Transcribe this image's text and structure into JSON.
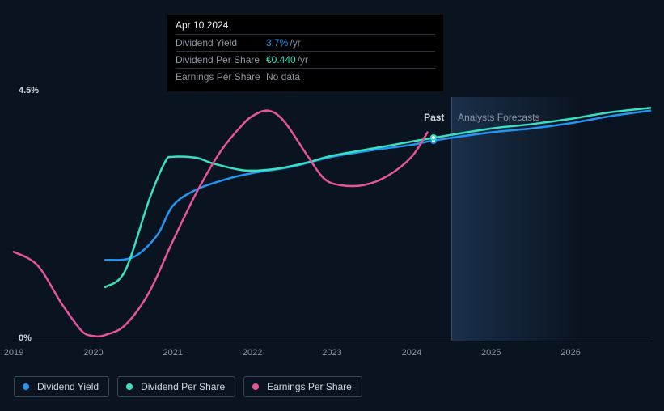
{
  "tooltip": {
    "date": "Apr 10 2024",
    "rows": [
      {
        "label": "Dividend Yield",
        "value": "3.7%",
        "unit": "/yr",
        "color": "#2196f3"
      },
      {
        "label": "Dividend Per Share",
        "value": "€0.440",
        "unit": "/yr",
        "color": "#38e1c0"
      },
      {
        "label": "Earnings Per Share",
        "value": "No data",
        "unit": "",
        "color": "#8a96a3"
      }
    ]
  },
  "chart": {
    "y_max_label": "4.5%",
    "y_min_label": "0%",
    "ylim": [
      0,
      4.5
    ],
    "xlim": [
      2019,
      2027
    ],
    "x_ticks": [
      2019,
      2020,
      2021,
      2022,
      2023,
      2024,
      2025,
      2026
    ],
    "past_label": "Past",
    "forecast_label": "Analysts Forecasts",
    "present_x": 2024.5,
    "marker_x": 2024.28,
    "background": "#0a1420",
    "grid_color": "#2a3947",
    "series": [
      {
        "name": "Dividend Yield",
        "color": "#2196f3",
        "width": 2.5,
        "points": [
          [
            2020.15,
            1.5
          ],
          [
            2020.5,
            1.55
          ],
          [
            2020.8,
            1.95
          ],
          [
            2021.0,
            2.5
          ],
          [
            2021.3,
            2.8
          ],
          [
            2021.7,
            3.0
          ],
          [
            2022.0,
            3.1
          ],
          [
            2022.5,
            3.22
          ],
          [
            2023.0,
            3.4
          ],
          [
            2023.5,
            3.52
          ],
          [
            2024.0,
            3.62
          ],
          [
            2024.28,
            3.7
          ],
          [
            2025.0,
            3.85
          ],
          [
            2025.5,
            3.92
          ],
          [
            2026.0,
            4.02
          ],
          [
            2026.5,
            4.15
          ],
          [
            2027.0,
            4.25
          ]
        ]
      },
      {
        "name": "Dividend Per Share",
        "color": "#38e1c0",
        "width": 2.5,
        "points": [
          [
            2020.15,
            1.0
          ],
          [
            2020.4,
            1.3
          ],
          [
            2020.7,
            2.6
          ],
          [
            2020.9,
            3.3
          ],
          [
            2021.0,
            3.4
          ],
          [
            2021.3,
            3.38
          ],
          [
            2021.5,
            3.28
          ],
          [
            2021.9,
            3.15
          ],
          [
            2022.3,
            3.18
          ],
          [
            2022.7,
            3.3
          ],
          [
            2023.0,
            3.42
          ],
          [
            2023.5,
            3.55
          ],
          [
            2024.0,
            3.68
          ],
          [
            2024.28,
            3.75
          ],
          [
            2025.0,
            3.92
          ],
          [
            2025.5,
            4.0
          ],
          [
            2026.0,
            4.1
          ],
          [
            2026.5,
            4.22
          ],
          [
            2027.0,
            4.3
          ]
        ]
      },
      {
        "name": "Earnings Per Share",
        "color": "#e6559b",
        "width": 2.5,
        "points": [
          [
            2019.0,
            1.65
          ],
          [
            2019.3,
            1.4
          ],
          [
            2019.6,
            0.7
          ],
          [
            2019.85,
            0.2
          ],
          [
            2020.0,
            0.1
          ],
          [
            2020.15,
            0.12
          ],
          [
            2020.4,
            0.3
          ],
          [
            2020.7,
            0.9
          ],
          [
            2021.0,
            1.85
          ],
          [
            2021.3,
            2.75
          ],
          [
            2021.6,
            3.5
          ],
          [
            2021.85,
            3.95
          ],
          [
            2022.0,
            4.15
          ],
          [
            2022.2,
            4.25
          ],
          [
            2022.4,
            4.05
          ],
          [
            2022.7,
            3.4
          ],
          [
            2022.9,
            3.0
          ],
          [
            2023.1,
            2.88
          ],
          [
            2023.4,
            2.88
          ],
          [
            2023.7,
            3.05
          ],
          [
            2024.0,
            3.4
          ],
          [
            2024.2,
            3.85
          ]
        ]
      }
    ]
  },
  "legend": [
    {
      "label": "Dividend Yield",
      "color": "#2196f3"
    },
    {
      "label": "Dividend Per Share",
      "color": "#38e1c0"
    },
    {
      "label": "Earnings Per Share",
      "color": "#e6559b"
    }
  ]
}
